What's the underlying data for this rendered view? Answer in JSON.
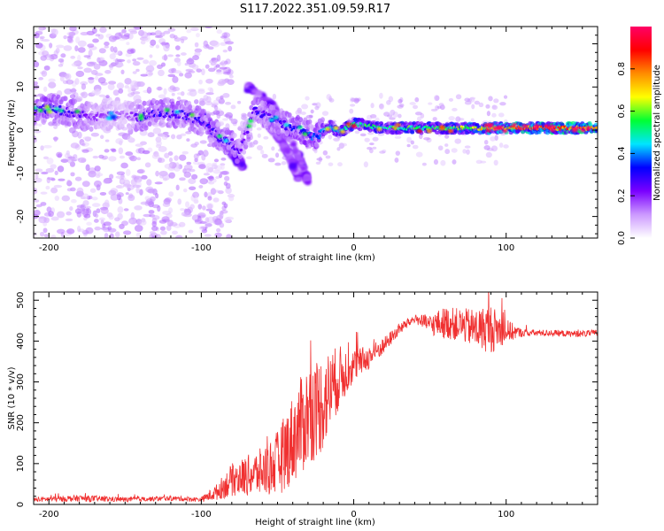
{
  "figure_title": "S117.2022.351.09.59.R17",
  "chart_data": [
    {
      "type": "heatmap",
      "title": "",
      "xlabel": "Height of straight line (km)",
      "ylabel": "Frequency (Hz)",
      "xlim": [
        -210,
        160
      ],
      "ylim": [
        -25,
        24
      ],
      "xticks": [
        -200,
        -100,
        0,
        100
      ],
      "yticks": [
        -20,
        -10,
        0,
        10,
        20
      ],
      "colorbar": {
        "label": "Normalized spectral amplitude",
        "range": [
          0,
          1
        ],
        "ticks": [
          0.0,
          0.2,
          0.4,
          0.6,
          0.8
        ],
        "colors": [
          "#ffffff",
          "#cc99ff",
          "#7a00ff",
          "#0000ff",
          "#00e5ff",
          "#00ff33",
          "#ffff00",
          "#ff8c00",
          "#ff0000",
          "#ff0066"
        ]
      },
      "ridge": [
        {
          "x": -210,
          "y": 4.5,
          "amp": 0.25
        },
        {
          "x": -200,
          "y": 5.0,
          "amp": 0.35
        },
        {
          "x": -190,
          "y": 4.5,
          "amp": 0.3
        },
        {
          "x": -180,
          "y": 3.5,
          "amp": 0.3
        },
        {
          "x": -170,
          "y": 3.0,
          "amp": 0.2
        },
        {
          "x": -150,
          "y": 3.5,
          "amp": 0.15
        },
        {
          "x": -140,
          "y": 3.0,
          "amp": 0.3
        },
        {
          "x": -130,
          "y": 4.0,
          "amp": 0.3
        },
        {
          "x": -120,
          "y": 4.0,
          "amp": 0.3
        },
        {
          "x": -110,
          "y": 3.5,
          "amp": 0.3
        },
        {
          "x": -100,
          "y": 2.0,
          "amp": 0.3
        },
        {
          "x": -90,
          "y": -1.0,
          "amp": 0.3
        },
        {
          "x": -80,
          "y": -3.0,
          "amp": 0.3
        },
        {
          "x": -75,
          "y": -5.0,
          "amp": 0.25
        },
        {
          "x": -65,
          "y": 4.5,
          "amp": 0.3
        },
        {
          "x": -55,
          "y": 3.0,
          "amp": 0.3
        },
        {
          "x": -45,
          "y": 1.0,
          "amp": 0.3
        },
        {
          "x": -35,
          "y": 0.0,
          "amp": 0.35
        },
        {
          "x": -25,
          "y": -1.5,
          "amp": 0.4
        },
        {
          "x": -15,
          "y": 1.0,
          "amp": 0.5
        },
        {
          "x": -10,
          "y": -0.5,
          "amp": 0.5
        },
        {
          "x": 0,
          "y": 1.5,
          "amp": 0.6
        },
        {
          "x": 20,
          "y": 0.5,
          "amp": 0.55
        },
        {
          "x": 40,
          "y": 0.5,
          "amp": 0.6
        },
        {
          "x": 60,
          "y": 0.5,
          "amp": 0.6
        },
        {
          "x": 80,
          "y": 0.5,
          "amp": 0.7
        },
        {
          "x": 100,
          "y": 0.5,
          "amp": 0.85
        },
        {
          "x": 130,
          "y": 0.5,
          "amp": 0.9
        },
        {
          "x": 160,
          "y": 0.5,
          "amp": 0.9
        }
      ],
      "branches": [
        {
          "x": [
            -70,
            -55,
            -45,
            -35,
            -30
          ],
          "y": [
            10,
            6,
            1,
            -7,
            -12
          ],
          "amp": 0.2
        },
        {
          "x": [
            -62,
            -50,
            -42,
            -36
          ],
          "y": [
            4,
            -1,
            -6,
            -11
          ],
          "amp": 0.2
        },
        {
          "x": [
            -100,
            -92,
            -85,
            -78,
            -72
          ],
          "y": [
            3,
            0,
            -3,
            -6,
            -9
          ],
          "amp": 0.25
        }
      ]
    },
    {
      "type": "line",
      "title": "",
      "xlabel": "Height of straight line (km)",
      "ylabel": "SNR (10 * v/v)",
      "xlim": [
        -210,
        160
      ],
      "ylim": [
        0,
        520
      ],
      "xticks": [
        -200,
        -100,
        0,
        100
      ],
      "yticks": [
        0,
        100,
        200,
        300,
        400,
        500
      ],
      "color": "#f03030",
      "envelope": {
        "x": [
          -210,
          -180,
          -150,
          -120,
          -100,
          -90,
          -80,
          -70,
          -60,
          -50,
          -40,
          -30,
          -20,
          -10,
          0,
          10,
          20,
          30,
          40,
          50,
          60,
          70,
          80,
          90,
          100,
          110,
          120,
          130,
          140,
          150,
          160
        ],
        "mean": [
          12,
          15,
          12,
          15,
          12,
          30,
          60,
          70,
          80,
          100,
          160,
          220,
          250,
          310,
          340,
          360,
          390,
          430,
          455,
          440,
          445,
          440,
          430,
          430,
          425,
          420,
          420,
          420,
          418,
          418,
          420
        ],
        "noise": [
          6,
          8,
          6,
          6,
          6,
          20,
          40,
          50,
          60,
          80,
          110,
          130,
          120,
          80,
          40,
          30,
          20,
          15,
          10,
          25,
          40,
          40,
          50,
          60,
          30,
          10,
          8,
          8,
          8,
          8,
          8
        ]
      }
    }
  ]
}
